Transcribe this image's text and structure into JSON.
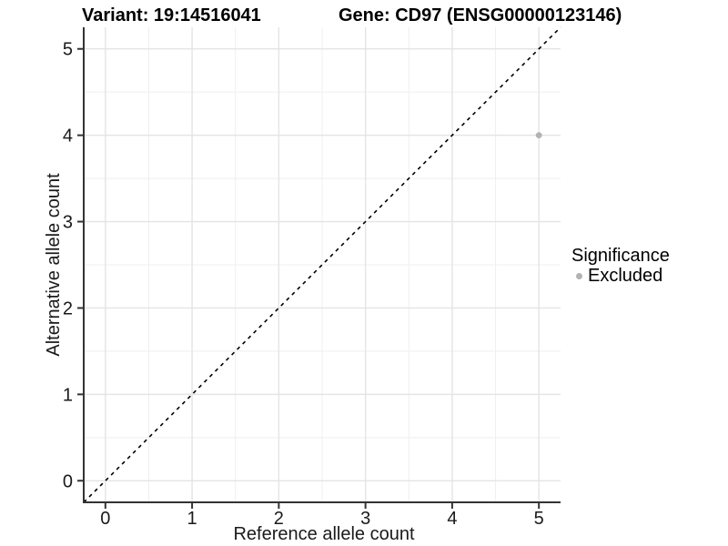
{
  "chart_data": {
    "type": "scatter",
    "title_left": "Variant: 19:14516041",
    "title_right": "Gene: CD97 (ENSG00000123146)",
    "xlabel": "Reference allele count",
    "ylabel": "Alternative allele count",
    "xlim": [
      -0.25,
      5.25
    ],
    "ylim": [
      -0.25,
      5.25
    ],
    "x_ticks": [
      0,
      1,
      2,
      3,
      4,
      5
    ],
    "y_ticks": [
      0,
      1,
      2,
      3,
      4,
      5
    ],
    "x_minor": [
      0.5,
      1.5,
      2.5,
      3.5,
      4.5
    ],
    "y_minor": [
      0.5,
      1.5,
      2.5,
      3.5,
      4.5
    ],
    "grid": "major+minor",
    "points": [
      {
        "x": 5,
        "y": 4,
        "series": "Excluded"
      }
    ],
    "identity_line": {
      "shown": true,
      "equation": "y = x",
      "style": "dashed",
      "color": "#000000"
    },
    "legend": {
      "title": "Significance",
      "position": "right",
      "items": [
        {
          "label": "Excluded",
          "color": "#b3b3b3",
          "marker": "circle"
        }
      ]
    },
    "colors": {
      "background": "#ffffff",
      "grid_major": "#e4e4e4",
      "grid_minor": "#efefef",
      "axis_line": "#333333",
      "tick_text": "#1a1a1a",
      "title_text": "#000000",
      "point": "#b3b3b3"
    }
  }
}
